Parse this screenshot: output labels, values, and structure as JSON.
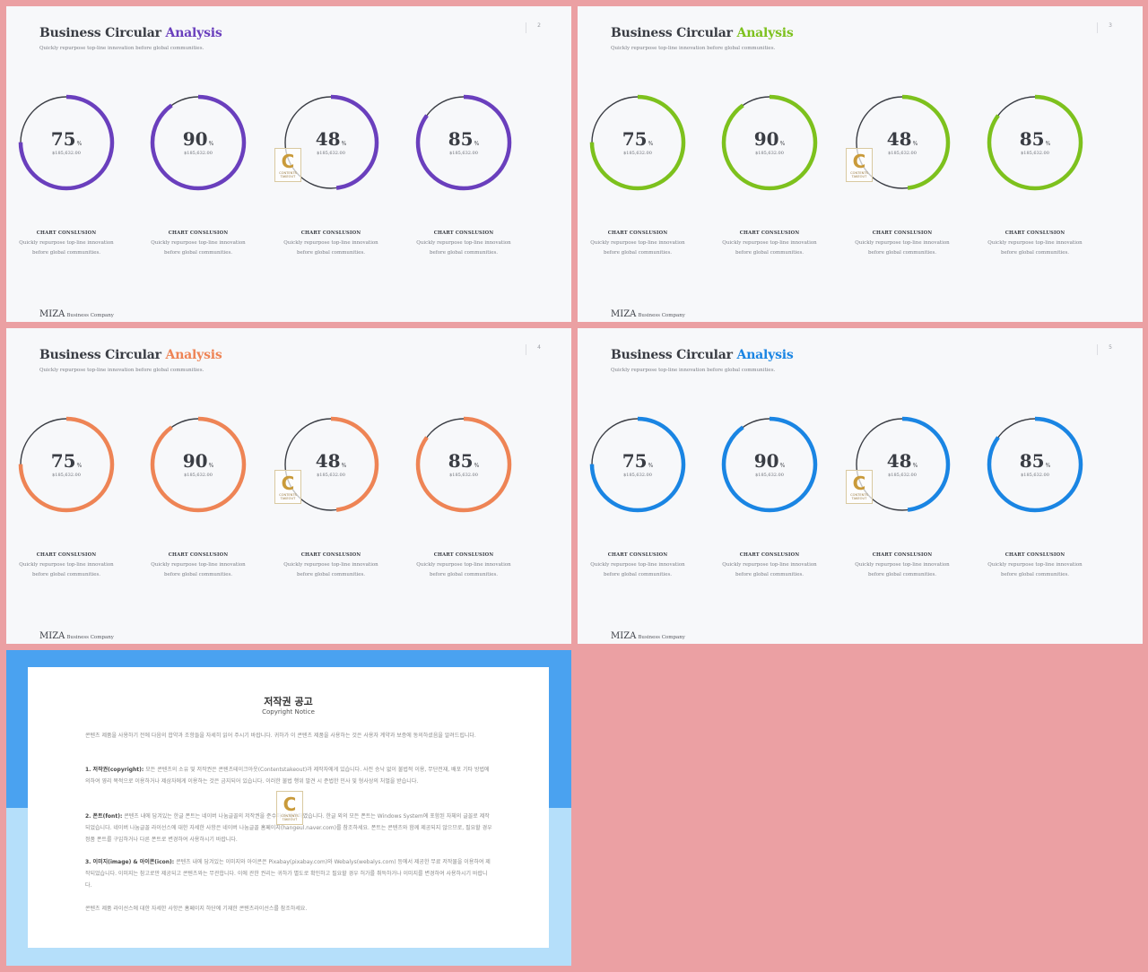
{
  "slides": [
    {
      "title": "Business Circular",
      "title_accent": "Analysis",
      "subtitle": "Quickly repurpose top-line innovation before global communities.",
      "page_number": "2",
      "accent_color": "#6a3fbd",
      "footer_brand": "MIZA",
      "footer_company": "Business Company"
    },
    {
      "title": "Business Circular",
      "title_accent": "Analysis",
      "subtitle": "Quickly repurpose top-line innovation before global communities.",
      "page_number": "3",
      "accent_color": "#7dc11d",
      "footer_brand": "MIZA",
      "footer_company": "Business Company"
    },
    {
      "title": "Business Circular",
      "title_accent": "Analysis",
      "subtitle": "Quickly repurpose top-line innovation before global communities.",
      "page_number": "4",
      "accent_color": "#ee8455",
      "footer_brand": "MIZA",
      "footer_company": "Business Company"
    },
    {
      "title": "Business Circular",
      "title_accent": "Analysis",
      "subtitle": "Quickly repurpose top-line innovation before global communities.",
      "page_number": "5",
      "accent_color": "#1a85e3",
      "footer_brand": "MIZA",
      "footer_company": "Business Company"
    }
  ],
  "chart_data": {
    "type": "donut",
    "percent_symbol": "%",
    "items": [
      {
        "value": 75,
        "amount": "$185,632.00",
        "caption_title": "CHART CONSLUSION",
        "caption_line1": "Quickly repurpose top-line innovation",
        "caption_line2": "before global communities."
      },
      {
        "value": 90,
        "amount": "$185,632.00",
        "caption_title": "CHART CONSLUSION",
        "caption_line1": "Quickly repurpose top-line innovation",
        "caption_line2": "before global communities."
      },
      {
        "value": 48,
        "amount": "$185,632.00",
        "caption_title": "CHART CONSLUSION",
        "caption_line1": "Quickly repurpose top-line innovation",
        "caption_line2": "before global communities."
      },
      {
        "value": 85,
        "amount": "$185,632.00",
        "caption_title": "CHART CONSLUSION",
        "caption_line1": "Quickly repurpose top-line innovation",
        "caption_line2": "before global communities."
      }
    ],
    "track_color": "#3a3d44"
  },
  "watermark": {
    "letter": "C",
    "text_line1": "CONTENTS",
    "text_line2": "TAKEOUT"
  },
  "copyright": {
    "title": "저작권 공고",
    "subtitle": "Copyright Notice",
    "intro": "콘텐츠 제품을 사용하기 전에 다음의 합약과 조항들을 자세히 읽어 주시기 바랍니다. 귀하가 이 콘텐츠 제품을 사용하는 것은 사용자 계약과 보증에 동의하셨음을 알려드립니다.",
    "s1_head": "1. 저작권(copyright):",
    "s1_body": "모든 콘텐츠의 소유 및 저작권은 콘텐츠테이크아웃(Contentstakeout)과 제작자에게 있습니다. 사전 승낙 없이 불법적 이용, 무단전재, 배포 기타 방법에 의하여 영리 목적으로 이용하거나 제삼자에게 이용하는 것은 금지되어 있습니다. 이러한 불법 행위 발견 시 준법한 민사 및 형사상의 처벌을 받습니다.",
    "s2_head": "2. 폰트(font):",
    "s2_body": "콘텐츠 내에 담겨있는 한글 폰트는 네이버 나눔글꼴의 저작권을 준수하여 제작하였습니다. 한글 외의 모든 폰트는 Windows System에 포함된 자체의 글꼴로 제작되었습니다. 네이버 나눔글꼴 라이선스에 대한 자세한 사항은 네이버 나눔글꼴 홈페이지(hangeul.naver.com)를 참조하세요. 폰트는 콘텐츠와 함께 제공되지 않으므로, 필요할 경우 정품 폰트를 구입하거나 다른 폰트로 변경하여 사용하시기 바랍니다.",
    "s3_head": "3. 이미지(image) & 아이콘(icon):",
    "s3_body": "콘텐츠 내에 담겨있는 이미지와 아이콘은 Pixabay(pixabay.com)와 Webalys(webalys.com) 등에서 제공한 무료 저작물을 이용하여 제작되었습니다. 이미지는 참고로만 제공되고 콘텐츠와는 무관합니다. 이에 관한 권리는 귀하가 별도로 확인하고 필요할 경우 허가를 취득하거나 이미지를 변경하여 사용하시기 바랍니다.",
    "outro": "콘텐츠 제품 라이선스에 대한 자세한 사항은 홈페이지 하단에 기재한 콘텐츠라이선스를 참조하세요."
  }
}
